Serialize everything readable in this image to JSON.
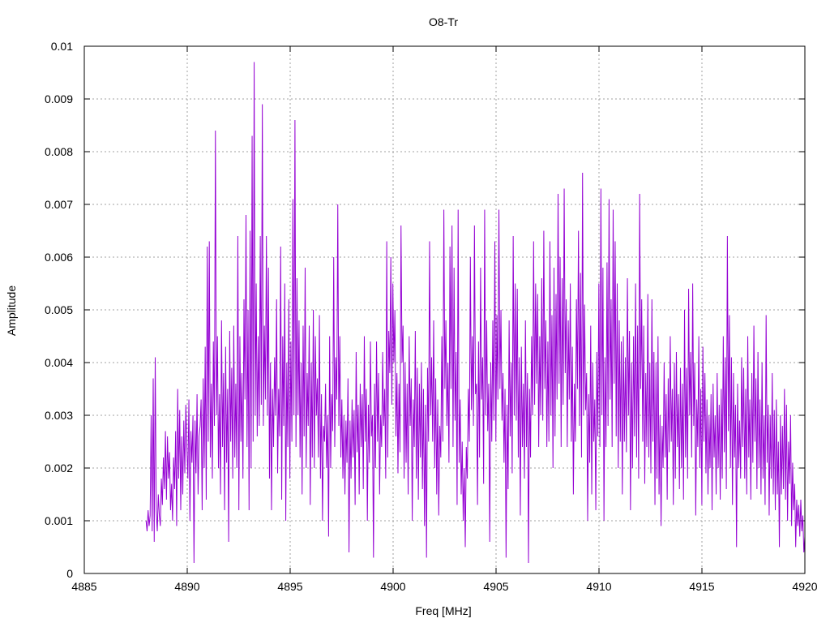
{
  "chart_data": {
    "type": "line",
    "title": "O8-Tr",
    "xlabel": "Freq [MHz]",
    "ylabel": "Amplitude",
    "xlim": [
      4885,
      4920
    ],
    "ylim": [
      0,
      0.01
    ],
    "xticks": [
      4885,
      4890,
      4895,
      4900,
      4905,
      4910,
      4915,
      4920
    ],
    "xtick_labels": [
      "4885",
      "4890",
      "4895",
      "4900",
      "4905",
      "4910",
      "4915",
      "4920"
    ],
    "yticks": [
      0,
      0.001,
      0.002,
      0.003,
      0.004,
      0.005,
      0.006,
      0.007,
      0.008,
      0.009,
      0.01
    ],
    "ytick_labels": [
      "0",
      "0.001",
      "0.002",
      "0.003",
      "0.004",
      "0.005",
      "0.006",
      "0.007",
      "0.008",
      "0.009",
      "0.01"
    ],
    "grid": true,
    "legend": "none",
    "series_color": "#9400D3",
    "series": [
      {
        "x_start": 4888.0,
        "x_end": 4920.0,
        "values": [
          0.001,
          0.0008,
          0.0012,
          0.0009,
          0.0011,
          0.003,
          0.0008,
          0.0037,
          0.0006,
          0.0041,
          0.0012,
          0.0008,
          0.0015,
          0.0011,
          0.0009,
          0.0018,
          0.0013,
          0.0022,
          0.0016,
          0.0027,
          0.0014,
          0.0026,
          0.0018,
          0.0023,
          0.0012,
          0.0017,
          0.001,
          0.0022,
          0.0016,
          0.0027,
          0.0009,
          0.0035,
          0.0018,
          0.0031,
          0.0012,
          0.0026,
          0.0015,
          0.0029,
          0.0019,
          0.0032,
          0.0024,
          0.0018,
          0.0033,
          0.001,
          0.0027,
          0.0021,
          0.003,
          0.0002,
          0.0029,
          0.0019,
          0.0034,
          0.0015,
          0.0026,
          0.0028,
          0.0033,
          0.0012,
          0.0037,
          0.002,
          0.0043,
          0.0014,
          0.0062,
          0.0025,
          0.0063,
          0.0022,
          0.0036,
          0.0018,
          0.0044,
          0.0028,
          0.0084,
          0.003,
          0.0045,
          0.002,
          0.0034,
          0.0015,
          0.0048,
          0.0024,
          0.0038,
          0.0012,
          0.0043,
          0.0021,
          0.0035,
          0.0006,
          0.0046,
          0.0025,
          0.0039,
          0.0018,
          0.0047,
          0.0022,
          0.0036,
          0.002,
          0.0064,
          0.0012,
          0.0045,
          0.0025,
          0.0038,
          0.0018,
          0.0052,
          0.0033,
          0.0068,
          0.0024,
          0.005,
          0.0012,
          0.0065,
          0.002,
          0.0083,
          0.0025,
          0.0097,
          0.003,
          0.0055,
          0.0026,
          0.0045,
          0.0028,
          0.0064,
          0.0032,
          0.0089,
          0.0028,
          0.0047,
          0.0033,
          0.0064,
          0.003,
          0.0058,
          0.0018,
          0.004,
          0.0012,
          0.0035,
          0.0024,
          0.0041,
          0.003,
          0.0052,
          0.0019,
          0.0035,
          0.0026,
          0.0062,
          0.0014,
          0.0045,
          0.0028,
          0.0055,
          0.001,
          0.004,
          0.0024,
          0.0052,
          0.0018,
          0.0044,
          0.0025,
          0.0071,
          0.003,
          0.0086,
          0.0024,
          0.0056,
          0.003,
          0.0048,
          0.0022,
          0.004,
          0.0015,
          0.0047,
          0.0026,
          0.0058,
          0.002,
          0.0038,
          0.0028,
          0.0047,
          0.0013,
          0.004,
          0.0022,
          0.005,
          0.002,
          0.0045,
          0.003,
          0.0037,
          0.0022,
          0.0049,
          0.0018,
          0.0034,
          0.001,
          0.0028,
          0.0025,
          0.0036,
          0.002,
          0.003,
          0.0007,
          0.0045,
          0.002,
          0.0034,
          0.0027,
          0.006,
          0.0024,
          0.0041,
          0.0033,
          0.007,
          0.0028,
          0.0045,
          0.0022,
          0.0033,
          0.0018,
          0.003,
          0.0015,
          0.0029,
          0.0021,
          0.0037,
          0.0004,
          0.0029,
          0.0018,
          0.0033,
          0.0022,
          0.0031,
          0.0013,
          0.0042,
          0.0023,
          0.0032,
          0.0015,
          0.0036,
          0.0024,
          0.0034,
          0.0016,
          0.0045,
          0.0025,
          0.0035,
          0.001,
          0.0032,
          0.0021,
          0.0044,
          0.0026,
          0.003,
          0.0003,
          0.0036,
          0.002,
          0.0044,
          0.0025,
          0.0038,
          0.0015,
          0.003,
          0.0024,
          0.0042,
          0.0028,
          0.0035,
          0.0018,
          0.0063,
          0.0022,
          0.0046,
          0.0038,
          0.006,
          0.0032,
          0.0055,
          0.004,
          0.005,
          0.0026,
          0.0038,
          0.0019,
          0.0036,
          0.0023,
          0.0066,
          0.004,
          0.0047,
          0.0018,
          0.004,
          0.0021,
          0.0036,
          0.0015,
          0.0045,
          0.0028,
          0.0037,
          0.001,
          0.0033,
          0.0024,
          0.0046,
          0.0018,
          0.0039,
          0.0014,
          0.0036,
          0.0022,
          0.004,
          0.0016,
          0.0035,
          0.0009,
          0.0032,
          0.0003,
          0.0039,
          0.0025,
          0.0063,
          0.003,
          0.0041,
          0.0025,
          0.0048,
          0.002,
          0.0037,
          0.0015,
          0.0033,
          0.0011,
          0.0028,
          0.0022,
          0.0045,
          0.0025,
          0.0069,
          0.0035,
          0.0048,
          0.0028,
          0.004,
          0.0021,
          0.0062,
          0.0035,
          0.0066,
          0.0024,
          0.0058,
          0.0029,
          0.0042,
          0.0013,
          0.0069,
          0.0021,
          0.0033,
          0.0015,
          0.0025,
          0.001,
          0.002,
          0.0005,
          0.0024,
          0.0018,
          0.0035,
          0.0025,
          0.006,
          0.0031,
          0.0045,
          0.0028,
          0.0066,
          0.0034,
          0.0036,
          0.0013,
          0.0044,
          0.0022,
          0.0058,
          0.0033,
          0.0041,
          0.0017,
          0.0069,
          0.003,
          0.0048,
          0.0027,
          0.0036,
          0.0006,
          0.004,
          0.0025,
          0.0048,
          0.0029,
          0.0063,
          0.0025,
          0.0049,
          0.0033,
          0.0069,
          0.0035,
          0.005,
          0.0029,
          0.0038,
          0.0021,
          0.0035,
          0.0003,
          0.0032,
          0.0016,
          0.0048,
          0.0026,
          0.004,
          0.0019,
          0.0064,
          0.003,
          0.0055,
          0.0029,
          0.0054,
          0.0022,
          0.0041,
          0.0011,
          0.0043,
          0.0024,
          0.0036,
          0.0018,
          0.0048,
          0.0024,
          0.0038,
          0.0002,
          0.0035,
          0.0022,
          0.0045,
          0.003,
          0.0063,
          0.0032,
          0.0055,
          0.0036,
          0.0053,
          0.0024,
          0.0045,
          0.003,
          0.0056,
          0.0029,
          0.0065,
          0.0035,
          0.0048,
          0.0024,
          0.0044,
          0.0025,
          0.0063,
          0.003,
          0.0049,
          0.002,
          0.0058,
          0.0026,
          0.0053,
          0.0033,
          0.0072,
          0.0036,
          0.006,
          0.0024,
          0.0056,
          0.0032,
          0.0073,
          0.0038,
          0.0052,
          0.0024,
          0.0048,
          0.0033,
          0.0055,
          0.0025,
          0.0043,
          0.0015,
          0.0036,
          0.0025,
          0.0052,
          0.0035,
          0.0065,
          0.0028,
          0.0057,
          0.0022,
          0.0076,
          0.003,
          0.0051,
          0.0031,
          0.0038,
          0.001,
          0.0034,
          0.0021,
          0.0047,
          0.0015,
          0.004,
          0.0025,
          0.0033,
          0.0012,
          0.0042,
          0.0026,
          0.0055,
          0.0024,
          0.0073,
          0.003,
          0.0058,
          0.001,
          0.0041,
          0.0024,
          0.0059,
          0.0028,
          0.0071,
          0.0033,
          0.0052,
          0.0024,
          0.0069,
          0.0036,
          0.0063,
          0.0026,
          0.0055,
          0.002,
          0.0048,
          0.0025,
          0.0044,
          0.0015,
          0.0045,
          0.0025,
          0.0041,
          0.0023,
          0.0056,
          0.003,
          0.0046,
          0.0012,
          0.004,
          0.002,
          0.0045,
          0.0026,
          0.0055,
          0.0022,
          0.0047,
          0.0018,
          0.0072,
          0.0035,
          0.0052,
          0.0025,
          0.0047,
          0.0017,
          0.0038,
          0.0024,
          0.0053,
          0.0022,
          0.004,
          0.0019,
          0.0052,
          0.0025,
          0.0042,
          0.0013,
          0.004,
          0.0018,
          0.0045,
          0.0015,
          0.003,
          0.0009,
          0.0028,
          0.002,
          0.004,
          0.0022,
          0.0034,
          0.0014,
          0.0037,
          0.0023,
          0.0045,
          0.0025,
          0.0035,
          0.0013,
          0.004,
          0.0018,
          0.0042,
          0.0024,
          0.0034,
          0.0016,
          0.0039,
          0.002,
          0.0036,
          0.0014,
          0.005,
          0.0022,
          0.0039,
          0.0018,
          0.0054,
          0.003,
          0.0042,
          0.0022,
          0.0055,
          0.0028,
          0.004,
          0.0011,
          0.0033,
          0.0024,
          0.0045,
          0.002,
          0.0035,
          0.0013,
          0.0043,
          0.0025,
          0.0038,
          0.0019,
          0.0033,
          0.0015,
          0.003,
          0.002,
          0.0034,
          0.0012,
          0.0036,
          0.0022,
          0.003,
          0.0015,
          0.0038,
          0.002,
          0.0032,
          0.0014,
          0.0035,
          0.0018,
          0.0045,
          0.0023,
          0.0041,
          0.0016,
          0.0064,
          0.0027,
          0.0049,
          0.002,
          0.0041,
          0.0013,
          0.0038,
          0.0022,
          0.0032,
          0.0005,
          0.0036,
          0.002,
          0.0029,
          0.0018,
          0.0041,
          0.0024,
          0.0039,
          0.0018,
          0.0035,
          0.0015,
          0.0045,
          0.0022,
          0.0033,
          0.0014,
          0.0038,
          0.0021,
          0.0047,
          0.0025,
          0.0037,
          0.0016,
          0.0042,
          0.002,
          0.0033,
          0.0015,
          0.004,
          0.0018,
          0.003,
          0.0013,
          0.0049,
          0.0021,
          0.0032,
          0.0011,
          0.003,
          0.0018,
          0.0038,
          0.0015,
          0.0031,
          0.0012,
          0.0033,
          0.0015,
          0.0025,
          0.0005,
          0.003,
          0.0015,
          0.0028,
          0.0016,
          0.0035,
          0.0014,
          0.0032,
          0.001,
          0.0025,
          0.0017,
          0.003,
          0.0009,
          0.0021,
          0.0012,
          0.0017,
          0.0005,
          0.0014,
          0.0009,
          0.0013,
          0.0007,
          0.0014,
          0.0008,
          0.0011,
          0.0004,
          0.0007
        ]
      }
    ]
  }
}
